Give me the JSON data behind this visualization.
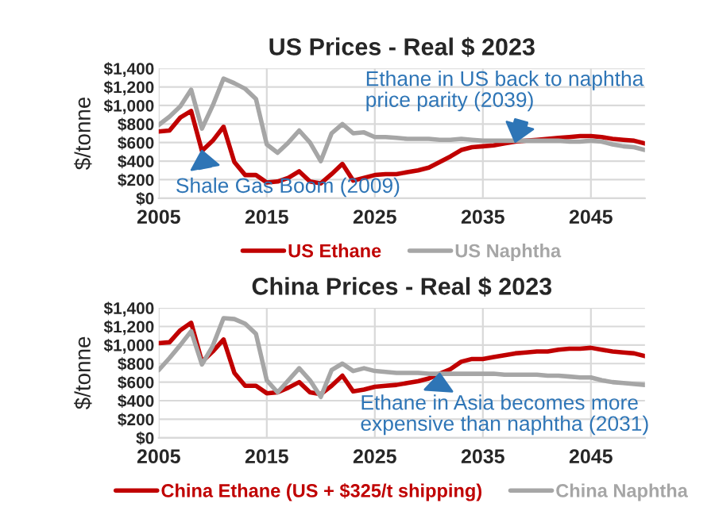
{
  "chart_data": [
    {
      "type": "line",
      "title": "US Prices - Real $ 2023",
      "ylabel": "$/tonne",
      "x": [
        2005,
        2006,
        2007,
        2008,
        2009,
        2010,
        2011,
        2012,
        2013,
        2014,
        2015,
        2016,
        2017,
        2018,
        2019,
        2020,
        2021,
        2022,
        2023,
        2024,
        2025,
        2026,
        2027,
        2028,
        2029,
        2030,
        2031,
        2032,
        2033,
        2034,
        2035,
        2036,
        2037,
        2038,
        2039,
        2040,
        2041,
        2042,
        2043,
        2044,
        2045,
        2046,
        2047,
        2048,
        2049,
        2050
      ],
      "series": [
        {
          "name": "US Ethane",
          "color": "#c00000",
          "values": [
            720,
            730,
            870,
            940,
            510,
            620,
            770,
            390,
            250,
            250,
            170,
            180,
            220,
            290,
            180,
            160,
            260,
            370,
            190,
            220,
            250,
            260,
            260,
            280,
            300,
            330,
            390,
            450,
            520,
            550,
            560,
            570,
            590,
            610,
            620,
            630,
            640,
            650,
            660,
            670,
            670,
            660,
            640,
            630,
            620,
            590
          ]
        },
        {
          "name": "US Naphtha",
          "color": "#a6a6a6",
          "values": [
            790,
            880,
            990,
            1170,
            750,
            1000,
            1290,
            1240,
            1180,
            1070,
            580,
            490,
            600,
            730,
            600,
            400,
            700,
            800,
            700,
            710,
            660,
            660,
            650,
            640,
            640,
            640,
            630,
            630,
            640,
            630,
            620,
            620,
            620,
            620,
            620,
            620,
            620,
            620,
            610,
            610,
            620,
            610,
            580,
            560,
            550,
            520
          ]
        }
      ],
      "xlim": [
        2005,
        2050
      ],
      "xticks": [
        2005,
        2015,
        2025,
        2035,
        2045
      ],
      "ylim": [
        0,
        1400
      ],
      "yticks": [
        {
          "value": 0,
          "label": "$0"
        },
        {
          "value": 200,
          "label": "$200"
        },
        {
          "value": 400,
          "label": "$400"
        },
        {
          "value": 600,
          "label": "$600"
        },
        {
          "value": 800,
          "label": "$800"
        },
        {
          "value": 1000,
          "label": "$1,000"
        },
        {
          "value": 1200,
          "label": "$1,200"
        },
        {
          "value": 1400,
          "label": "$1,400"
        }
      ],
      "grid": true,
      "legend": "bottom",
      "marker": "none",
      "line_style": "solid",
      "annotations": [
        {
          "text": "Shale Gas Boom (2009)",
          "x": 2009,
          "y": 510
        },
        {
          "text": "Ethane in US back to naphtha\nprice parity (2039)",
          "x": 2038,
          "y": 610
        }
      ]
    },
    {
      "type": "line",
      "title": "China Prices - Real $ 2023",
      "ylabel": "$/tonne",
      "x": [
        2005,
        2006,
        2007,
        2008,
        2009,
        2010,
        2011,
        2012,
        2013,
        2014,
        2015,
        2016,
        2017,
        2018,
        2019,
        2020,
        2021,
        2022,
        2023,
        2024,
        2025,
        2026,
        2027,
        2028,
        2029,
        2030,
        2031,
        2032,
        2033,
        2034,
        2035,
        2036,
        2037,
        2038,
        2039,
        2040,
        2041,
        2042,
        2043,
        2044,
        2045,
        2046,
        2047,
        2048,
        2049,
        2050
      ],
      "series": [
        {
          "name": "China Ethane (US + $325/t shipping)",
          "color": "#c00000",
          "values": [
            1020,
            1030,
            1160,
            1240,
            820,
            930,
            1060,
            700,
            560,
            560,
            480,
            490,
            540,
            600,
            490,
            470,
            560,
            670,
            500,
            520,
            550,
            560,
            570,
            590,
            610,
            640,
            690,
            740,
            820,
            850,
            850,
            870,
            890,
            910,
            920,
            930,
            930,
            950,
            960,
            960,
            970,
            950,
            930,
            920,
            910,
            880
          ]
        },
        {
          "name": "China Naphtha",
          "color": "#a6a6a6",
          "values": [
            730,
            860,
            1000,
            1150,
            790,
            990,
            1290,
            1280,
            1230,
            1120,
            620,
            490,
            620,
            750,
            620,
            440,
            730,
            800,
            720,
            750,
            720,
            710,
            700,
            700,
            700,
            690,
            690,
            690,
            690,
            690,
            690,
            690,
            680,
            680,
            680,
            680,
            670,
            670,
            660,
            650,
            650,
            620,
            600,
            590,
            580,
            570
          ]
        }
      ],
      "xlim": [
        2005,
        2050
      ],
      "xticks": [
        2005,
        2015,
        2025,
        2035,
        2045
      ],
      "ylim": [
        0,
        1400
      ],
      "yticks": [
        {
          "value": 0,
          "label": "$0"
        },
        {
          "value": 200,
          "label": "$200"
        },
        {
          "value": 400,
          "label": "$400"
        },
        {
          "value": 600,
          "label": "$600"
        },
        {
          "value": 800,
          "label": "$800"
        },
        {
          "value": 1000,
          "label": "$1,000"
        },
        {
          "value": 1200,
          "label": "$1,200"
        },
        {
          "value": 1400,
          "label": "$1,400"
        }
      ],
      "grid": true,
      "legend": "bottom",
      "marker": "none",
      "line_style": "solid",
      "annotations": [
        {
          "text": "Ethane in Asia becomes more\nexpensive than naphtha (2031)",
          "x": 2031,
          "y": 690
        }
      ]
    }
  ]
}
